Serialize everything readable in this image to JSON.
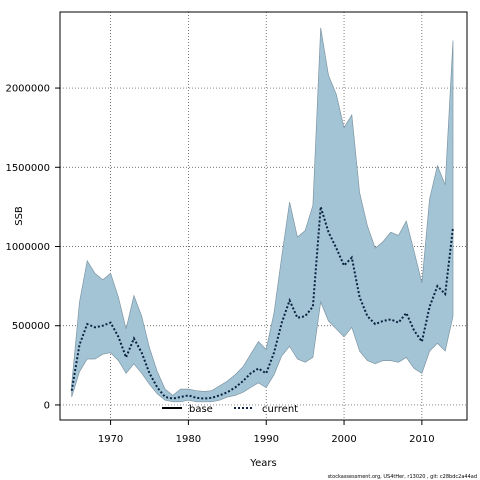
{
  "chart_data": {
    "type": "area",
    "xlabel": "Years",
    "ylabel": "SSB",
    "xlim": [
      1963.5,
      2015.8
    ],
    "ylim": [
      -95000,
      2480000
    ],
    "xticks": [
      1970,
      1980,
      1990,
      2000,
      2010
    ],
    "yticks": [
      0,
      500000,
      1000000,
      1500000,
      2000000
    ],
    "ytick_labels": [
      "0",
      "500000",
      "1000000",
      "1500000",
      "2000000"
    ],
    "grid": true,
    "legend_position": "bottom",
    "legend": [
      {
        "name": "base",
        "color": "#000000",
        "style": "solid"
      },
      {
        "name": "current",
        "color": "#0a2340",
        "style": "dotted"
      }
    ],
    "colors": {
      "band": "#a3c4d5",
      "band_edge": "#7d95a3",
      "current_line": "#0a2340"
    },
    "years": [
      1965,
      1966,
      1967,
      1968,
      1969,
      1970,
      1971,
      1972,
      1973,
      1974,
      1975,
      1976,
      1977,
      1978,
      1979,
      1980,
      1981,
      1982,
      1983,
      1984,
      1985,
      1986,
      1987,
      1988,
      1989,
      1990,
      1991,
      1992,
      1993,
      1994,
      1995,
      1996,
      1997,
      1998,
      1999,
      2000,
      2001,
      2002,
      2003,
      2004,
      2005,
      2006,
      2007,
      2008,
      2009,
      2010,
      2011,
      2012,
      2013,
      2014
    ],
    "series": [
      {
        "name": "current",
        "values": [
          90000,
          380000,
          510000,
          490000,
          500000,
          520000,
          430000,
          300000,
          420000,
          330000,
          200000,
          110000,
          50000,
          40000,
          50000,
          60000,
          45000,
          40000,
          45000,
          60000,
          80000,
          110000,
          150000,
          200000,
          230000,
          200000,
          330000,
          520000,
          660000,
          550000,
          560000,
          620000,
          1250000,
          1090000,
          990000,
          880000,
          930000,
          680000,
          560000,
          510000,
          530000,
          540000,
          520000,
          580000,
          470000,
          400000,
          620000,
          750000,
          700000,
          1120000
        ]
      },
      {
        "name": "upper",
        "values": [
          130000,
          650000,
          910000,
          830000,
          790000,
          830000,
          680000,
          480000,
          690000,
          560000,
          360000,
          210000,
          100000,
          60000,
          100000,
          100000,
          90000,
          85000,
          90000,
          120000,
          150000,
          190000,
          240000,
          320000,
          400000,
          350000,
          580000,
          940000,
          1280000,
          1060000,
          1100000,
          1260000,
          2380000,
          2080000,
          1960000,
          1750000,
          1830000,
          1340000,
          1130000,
          990000,
          1030000,
          1090000,
          1070000,
          1160000,
          970000,
          770000,
          1300000,
          1510000,
          1390000,
          2300000
        ]
      },
      {
        "name": "lower",
        "values": [
          50000,
          210000,
          290000,
          290000,
          320000,
          330000,
          280000,
          200000,
          260000,
          200000,
          130000,
          70000,
          30000,
          20000,
          20000,
          30000,
          20000,
          20000,
          20000,
          30000,
          50000,
          60000,
          80000,
          110000,
          140000,
          110000,
          190000,
          310000,
          370000,
          290000,
          270000,
          300000,
          650000,
          530000,
          480000,
          430000,
          490000,
          340000,
          280000,
          260000,
          280000,
          280000,
          270000,
          300000,
          230000,
          200000,
          340000,
          390000,
          340000,
          560000
        ]
      }
    ]
  },
  "footer_text": "stockassessment.org, US4tHer, r13020 ,  git: c28bdc2a44ad"
}
